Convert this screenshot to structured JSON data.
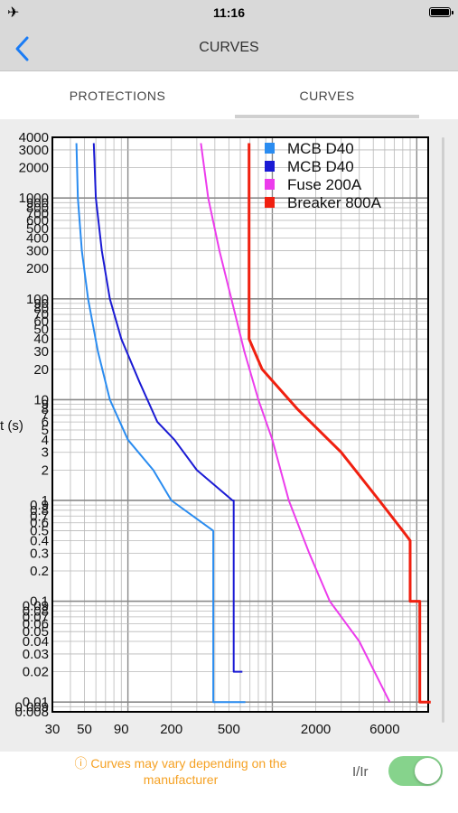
{
  "status": {
    "time": "11:16"
  },
  "nav": {
    "title": "CURVES"
  },
  "tabs": [
    {
      "label": "PROTECTIONS"
    },
    {
      "label": "CURVES"
    }
  ],
  "footer": {
    "note_line1": "ⓘ Curves may vary depending on the",
    "note_line2": "manufacturer",
    "toggle_label": "I/Ir",
    "toggle_on": true
  },
  "chart_data": {
    "type": "line",
    "xscale": "log",
    "yscale": "log",
    "xlim": [
      30,
      12000
    ],
    "ylim": [
      0.008,
      4000
    ],
    "ylabel": "t (s)",
    "xticks": [
      {
        "v": 30,
        "l": "30"
      },
      {
        "v": 50,
        "l": "50"
      },
      {
        "v": 90,
        "l": "90"
      },
      {
        "v": 200,
        "l": "200"
      },
      {
        "v": 500,
        "l": "500"
      },
      {
        "v": 2000,
        "l": "2000"
      },
      {
        "v": 6000,
        "l": "6000"
      }
    ],
    "yticks": [
      {
        "v": 4000,
        "l": "4000"
      },
      {
        "v": 3000,
        "l": "3000"
      },
      {
        "v": 2000,
        "l": "2000"
      },
      {
        "v": 1000,
        "l": "1000"
      },
      {
        "v": 900,
        "l": "900"
      },
      {
        "v": 800,
        "l": "800"
      },
      {
        "v": 700,
        "l": "700"
      },
      {
        "v": 600,
        "l": "600"
      },
      {
        "v": 500,
        "l": "500"
      },
      {
        "v": 400,
        "l": "400"
      },
      {
        "v": 300,
        "l": "300"
      },
      {
        "v": 200,
        "l": "200"
      },
      {
        "v": 100,
        "l": "100"
      },
      {
        "v": 90,
        "l": "90"
      },
      {
        "v": 80,
        "l": "80"
      },
      {
        "v": 70,
        "l": "70"
      },
      {
        "v": 60,
        "l": "60"
      },
      {
        "v": 50,
        "l": "50"
      },
      {
        "v": 40,
        "l": "40"
      },
      {
        "v": 30,
        "l": "30"
      },
      {
        "v": 20,
        "l": "20"
      },
      {
        "v": 10,
        "l": "10"
      },
      {
        "v": 9,
        "l": "9"
      },
      {
        "v": 8,
        "l": "8"
      },
      {
        "v": 7,
        "l": "7"
      },
      {
        "v": 6,
        "l": "6"
      },
      {
        "v": 5,
        "l": "5"
      },
      {
        "v": 4,
        "l": "4"
      },
      {
        "v": 3,
        "l": "3"
      },
      {
        "v": 2,
        "l": "2"
      },
      {
        "v": 1,
        "l": "1"
      },
      {
        "v": 0.9,
        "l": "0.9"
      },
      {
        "v": 0.8,
        "l": "0.8"
      },
      {
        "v": 0.7,
        "l": "0.7"
      },
      {
        "v": 0.6,
        "l": "0.6"
      },
      {
        "v": 0.5,
        "l": "0.5"
      },
      {
        "v": 0.4,
        "l": "0.4"
      },
      {
        "v": 0.3,
        "l": "0.3"
      },
      {
        "v": 0.2,
        "l": "0.2"
      },
      {
        "v": 0.1,
        "l": "0.1"
      },
      {
        "v": 0.09,
        "l": "0.09"
      },
      {
        "v": 0.08,
        "l": "0.08"
      },
      {
        "v": 0.07,
        "l": "0.07"
      },
      {
        "v": 0.06,
        "l": "0.06"
      },
      {
        "v": 0.05,
        "l": "0.05"
      },
      {
        "v": 0.04,
        "l": "0.04"
      },
      {
        "v": 0.03,
        "l": "0.03"
      },
      {
        "v": 0.02,
        "l": "0.02"
      },
      {
        "v": 0.01,
        "l": "0.01"
      },
      {
        "v": 0.009,
        "l": "0.009"
      },
      {
        "v": 0.008,
        "l": "0.008"
      }
    ],
    "series": [
      {
        "name": "MCB D40",
        "color": "#2a8cf0",
        "points": [
          [
            44,
            3500
          ],
          [
            45,
            1000
          ],
          [
            48,
            300
          ],
          [
            53,
            100
          ],
          [
            62,
            30
          ],
          [
            75,
            10
          ],
          [
            100,
            4
          ],
          [
            150,
            2
          ],
          [
            200,
            1
          ],
          [
            390,
            0.5
          ],
          [
            390,
            0.01
          ],
          [
            650,
            0.01
          ]
        ]
      },
      {
        "name": "MCB D40",
        "color": "#1a1ad4",
        "points": [
          [
            58,
            3500
          ],
          [
            60,
            1000
          ],
          [
            66,
            300
          ],
          [
            75,
            100
          ],
          [
            90,
            40
          ],
          [
            120,
            15
          ],
          [
            160,
            6
          ],
          [
            210,
            4
          ],
          [
            300,
            2
          ],
          [
            530,
            1
          ],
          [
            540,
            1
          ],
          [
            540,
            0.02
          ],
          [
            620,
            0.02
          ]
        ]
      },
      {
        "name": "Fuse 200A",
        "color": "#ec3cec",
        "points": [
          [
            320,
            3500
          ],
          [
            360,
            1000
          ],
          [
            430,
            300
          ],
          [
            520,
            100
          ],
          [
            640,
            30
          ],
          [
            800,
            10
          ],
          [
            1000,
            4
          ],
          [
            1300,
            1
          ],
          [
            1800,
            0.3
          ],
          [
            2500,
            0.1
          ],
          [
            4000,
            0.04
          ],
          [
            6500,
            0.01
          ]
        ]
      },
      {
        "name": "Breaker 800A",
        "color": "#f02010",
        "points": [
          [
            690,
            3500
          ],
          [
            690,
            40
          ],
          [
            850,
            20
          ],
          [
            1500,
            8
          ],
          [
            3000,
            3
          ],
          [
            5500,
            1
          ],
          [
            8000,
            0.5
          ],
          [
            9000,
            0.4
          ],
          [
            9000,
            0.1
          ],
          [
            10500,
            0.1
          ],
          [
            10500,
            0.01
          ],
          [
            12500,
            0.01
          ]
        ]
      }
    ]
  }
}
